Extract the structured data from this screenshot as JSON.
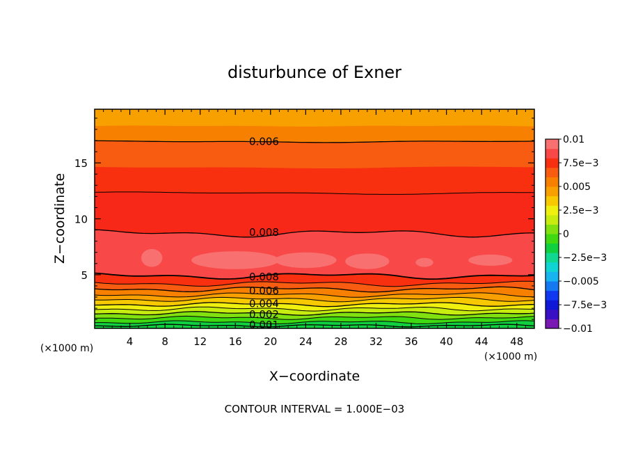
{
  "chart_data": {
    "type": "contour",
    "title": "disturbunce of Exner",
    "xlabel": "X−coordinate",
    "ylabel": "Z−coordinate",
    "x_unit": "(×1000 m)",
    "y_unit": "(×1000 m)",
    "xlim": [
      0,
      50
    ],
    "ylim": [
      0.2,
      19.8
    ],
    "x_ticks": [
      4,
      8,
      12,
      16,
      20,
      24,
      28,
      32,
      36,
      40,
      44,
      48
    ],
    "y_ticks": [
      5,
      10,
      15
    ],
    "footer": "CONTOUR INTERVAL = 1.000E−03",
    "colorbar": {
      "min": -0.01,
      "max": 0.01,
      "labels": [
        {
          "value": 0.01,
          "text": "0.01"
        },
        {
          "value": 0.0075,
          "text": "7.5e−3"
        },
        {
          "value": 0.005,
          "text": "0.005"
        },
        {
          "value": 0.0025,
          "text": "2.5e−3"
        },
        {
          "value": 0,
          "text": "0"
        },
        {
          "value": -0.0025,
          "text": "−2.5e−3"
        },
        {
          "value": -0.005,
          "text": "−0.005"
        },
        {
          "value": -0.0075,
          "text": "−7.5e−3"
        },
        {
          "value": -0.01,
          "text": "−0.01"
        }
      ],
      "colors": [
        "#7a18b4",
        "#3a10c4",
        "#1018d8",
        "#1038f0",
        "#1478f0",
        "#18b4f0",
        "#10d4d4",
        "#10d890",
        "#10d040",
        "#40d810",
        "#80e010",
        "#c8ec10",
        "#f0f010",
        "#f8c800",
        "#f8a000",
        "#f88000",
        "#f85c10",
        "#f83010",
        "#f84848",
        "#f87070"
      ]
    },
    "contour_labels": [
      {
        "x": 18,
        "z": 16.9,
        "text": "0.006"
      },
      {
        "x": 18,
        "z": 8.8,
        "text": "0.008"
      },
      {
        "x": 18,
        "z": 4.8,
        "text": "0.008"
      },
      {
        "x": 18,
        "z": 3.55,
        "text": "0.006"
      },
      {
        "x": 18,
        "z": 2.4,
        "text": "0.004"
      },
      {
        "x": 18,
        "z": 1.45,
        "text": "0.002"
      },
      {
        "x": 18,
        "z": 0.5,
        "text": "0.001"
      }
    ]
  }
}
